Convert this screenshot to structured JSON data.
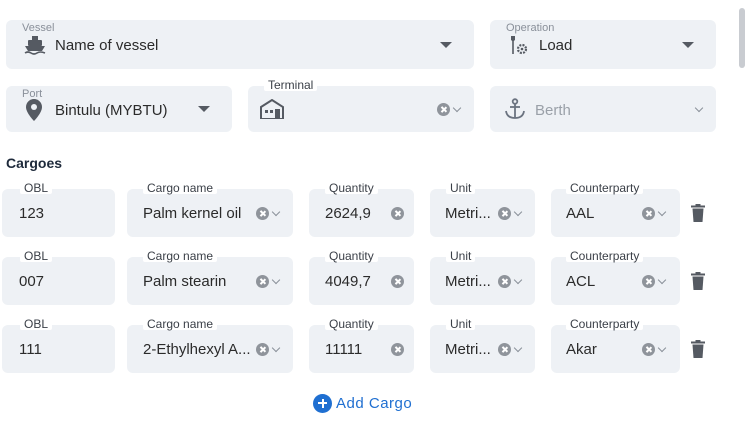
{
  "vessel": {
    "label": "Vessel",
    "value": "Name of vessel",
    "icon": "ship-icon"
  },
  "operation": {
    "label": "Operation",
    "value": "Load",
    "icon": "operation-tools-icon"
  },
  "port": {
    "label": "Port",
    "value": "Bintulu (MYBTU)",
    "icon": "location-pin-icon"
  },
  "terminal": {
    "label": "Terminal",
    "value": "",
    "icon": "terminal-building-icon"
  },
  "berth": {
    "placeholder": "Berth",
    "icon": "anchor-icon"
  },
  "cargoes": {
    "title": "Cargoes",
    "labels": {
      "obl": "OBL",
      "cargo_name": "Cargo name",
      "quantity": "Quantity",
      "unit": "Unit",
      "counterparty": "Counterparty"
    },
    "rows": [
      {
        "obl": "123",
        "cargo_name": "Palm kernel oil",
        "quantity": "2624,9",
        "unit": "Metri...",
        "counterparty": "AAL"
      },
      {
        "obl": "007",
        "cargo_name": "Palm stearin",
        "quantity": "4049,7",
        "unit": "Metri...",
        "counterparty": "ACL"
      },
      {
        "obl": "111",
        "cargo_name": "2-Ethylhexyl A...",
        "quantity": "11111",
        "unit": "Metri...",
        "counterparty": "Akar"
      }
    ],
    "add_label": "Add Cargo"
  },
  "colors": {
    "accent": "#1f6fd1",
    "field_bg": "#eef1f5"
  }
}
